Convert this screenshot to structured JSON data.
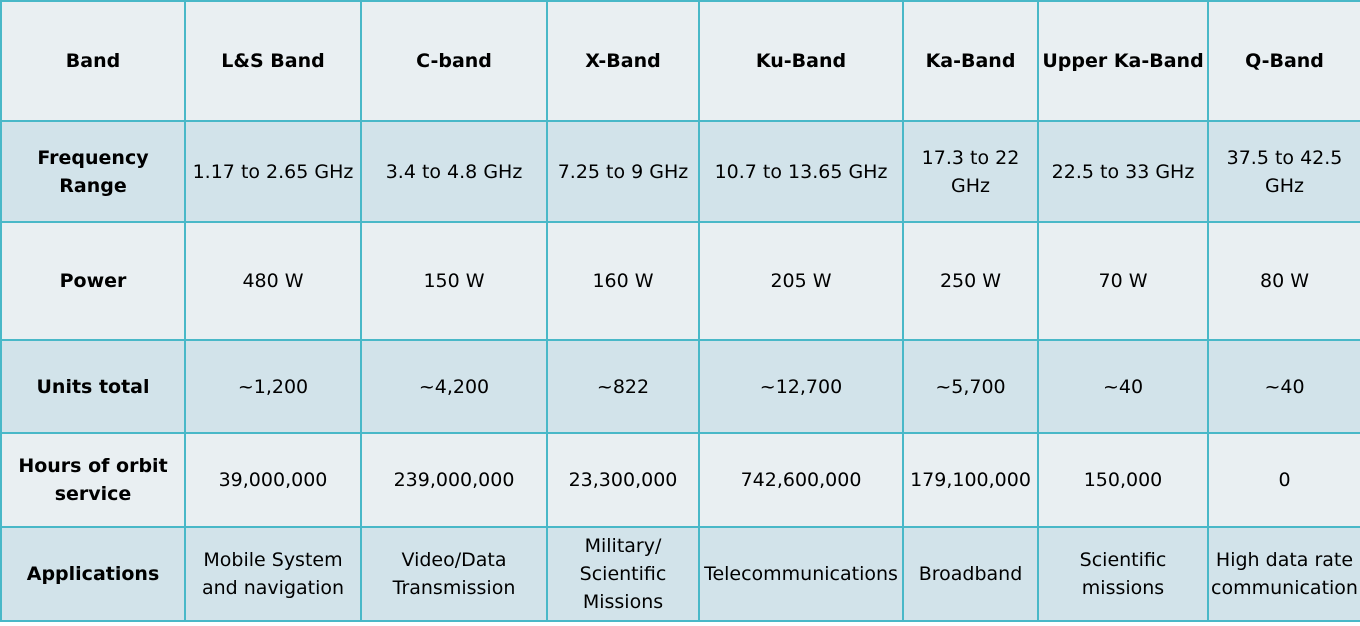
{
  "table": {
    "header": [
      "Band",
      "L&S Band",
      "C-band",
      "X-Band",
      "Ku-Band",
      "Ka-Band",
      "Upper Ka-Band",
      "Q-Band"
    ],
    "rows": [
      {
        "label": "Frequency Range",
        "cells": [
          "1.17 to 2.65 GHz",
          "3.4 to 4.8 GHz",
          "7.25 to 9 GHz",
          "10.7 to 13.65 GHz",
          "17.3 to 22 GHz",
          "22.5 to 33 GHz",
          "37.5 to 42.5 GHz"
        ]
      },
      {
        "label": "Power",
        "cells": [
          "480 W",
          "150 W",
          "160 W",
          "205 W",
          "250 W",
          "70 W",
          "80 W"
        ]
      },
      {
        "label": "Units total",
        "cells": [
          "~1,200",
          "~4,200",
          "~822",
          "~12,700",
          "~5,700",
          "~40",
          "~40"
        ]
      },
      {
        "label": "Hours of orbit service",
        "cells": [
          "39,000,000",
          "239,000,000",
          "23,300,000",
          "742,600,000",
          "179,100,000",
          "150,000",
          "0"
        ]
      },
      {
        "label": "Applications",
        "cells": [
          "Mobile System and navigation",
          "Video/Data Transmission",
          "Military/ Scientific Missions",
          "Telecommunications",
          "Broadband",
          "Scientific missions",
          "High data rate communication"
        ]
      }
    ]
  }
}
